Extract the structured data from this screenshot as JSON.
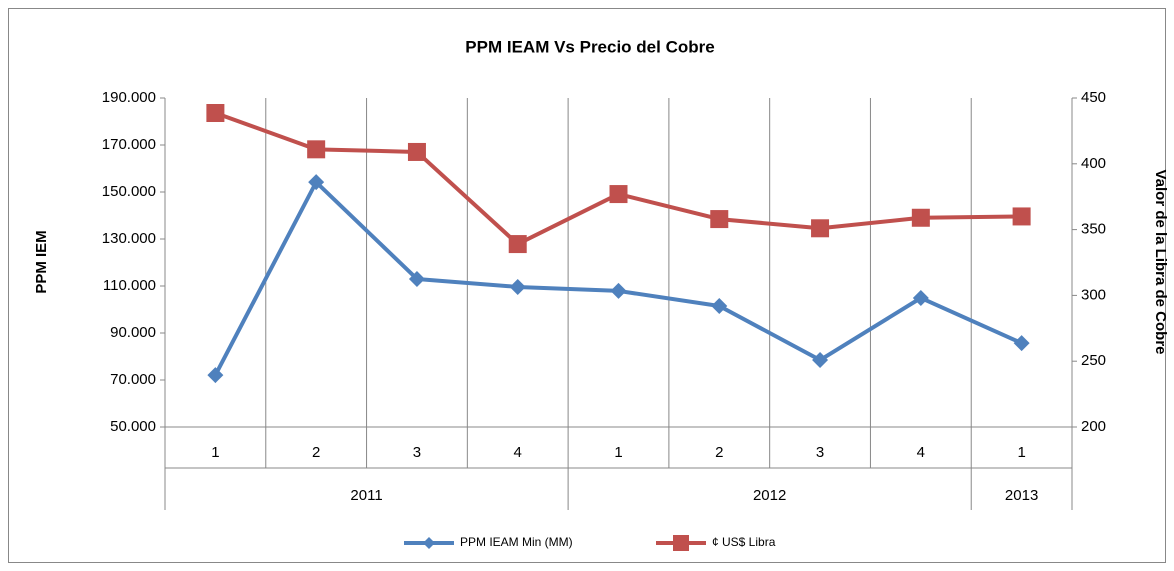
{
  "chart_data": {
    "type": "line",
    "title": "PPM IEAM Vs Precio del Cobre",
    "ylabel": "PPM IEM",
    "y2label": "Valor de la Libra de Cobre",
    "categories": [
      "1",
      "2",
      "3",
      "4",
      "1",
      "2",
      "3",
      "4",
      "1"
    ],
    "x_groups": [
      "2011",
      "2011",
      "2011",
      "2011",
      "2012",
      "2012",
      "2012",
      "2012",
      "2013"
    ],
    "series": [
      {
        "name": "PPM IEAM Min (MM)",
        "color": "#4f81bd",
        "marker": "diamond",
        "axis": "y",
        "values": [
          72100,
          154200,
          113000,
          109600,
          107900,
          101500,
          78500,
          104900,
          85700
        ]
      },
      {
        "name": "¢ US$ Libra",
        "color": "#c0504d",
        "marker": "square",
        "axis": "y2",
        "values": [
          438.6,
          411,
          409,
          339,
          377,
          358,
          351,
          359,
          360
        ]
      }
    ],
    "ylim": [
      50000,
      190000
    ],
    "yticks": [
      {
        "value": 50000,
        "label": "50.000"
      },
      {
        "value": 70000,
        "label": "70.000"
      },
      {
        "value": 90000,
        "label": "90.000"
      },
      {
        "value": 110000,
        "label": "110.000"
      },
      {
        "value": 130000,
        "label": "130.000"
      },
      {
        "value": 150000,
        "label": "150.000"
      },
      {
        "value": 170000,
        "label": "170.000"
      },
      {
        "value": 190000,
        "label": "190.000"
      }
    ],
    "y2lim": [
      200,
      450
    ],
    "y2ticks": [
      200,
      250,
      300,
      350,
      400,
      450
    ],
    "grid": "x",
    "legend": "bottom"
  }
}
